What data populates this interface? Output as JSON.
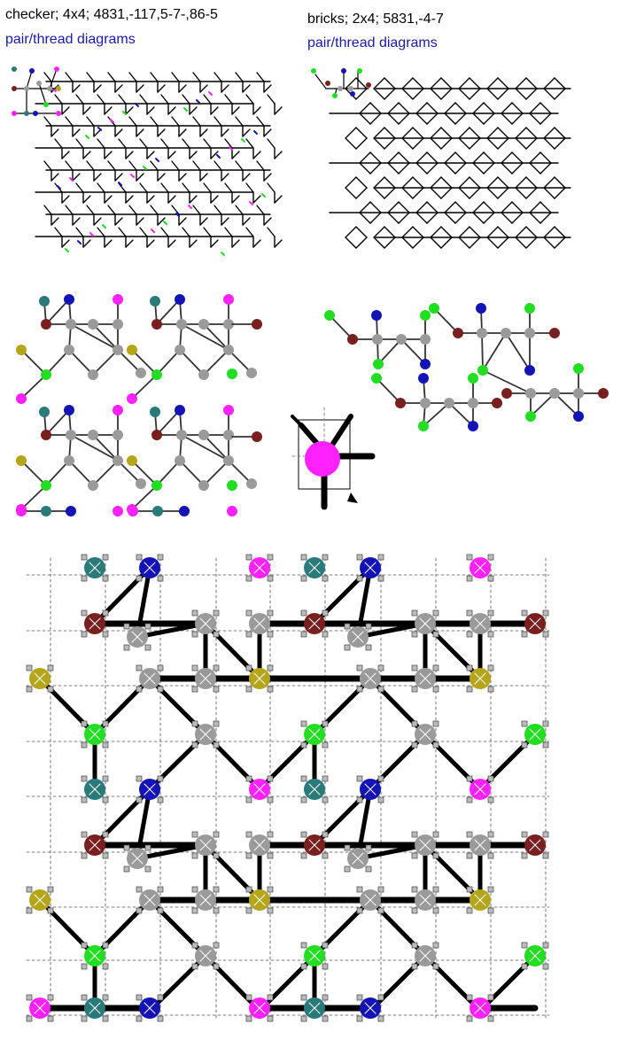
{
  "left_panel": {
    "title": "checker; 4x4; 4831,-117,5-7-,86-5",
    "link": "pair/thread diagrams"
  },
  "right_panel": {
    "title": "bricks; 2x4; 5831,-4-7",
    "link": "pair/thread diagrams"
  },
  "colors": {
    "teal": "#2a7a7a",
    "blue": "#1414b4",
    "magenta": "#ff22ff",
    "maroon": "#7a1f1f",
    "gray": "#9a9a9a",
    "olive": "#b5a51a",
    "green": "#22dd22",
    "link": "#1a1aa6"
  }
}
